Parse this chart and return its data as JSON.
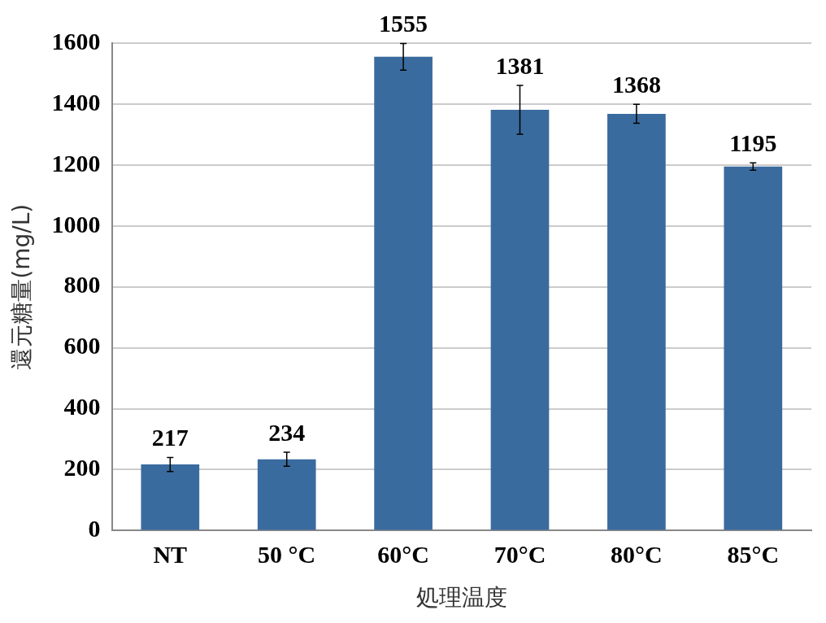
{
  "chart_data": {
    "type": "bar",
    "xlabel": "処理温度",
    "ylabel": "還元糖量(mg/L)",
    "categories": [
      "NT",
      "50 °C",
      "60°C",
      "70°C",
      "80°C",
      "85°C"
    ],
    "values": [
      217,
      234,
      1555,
      1381,
      1368,
      1195
    ],
    "errors": [
      23,
      23,
      44,
      80,
      31,
      12
    ],
    "color": "#3a6b9e",
    "ylim": [
      0,
      1600
    ],
    "yticks": [
      0,
      200,
      400,
      600,
      800,
      1000,
      1200,
      1400,
      1600
    ],
    "grid": "y",
    "data_labels": true
  }
}
